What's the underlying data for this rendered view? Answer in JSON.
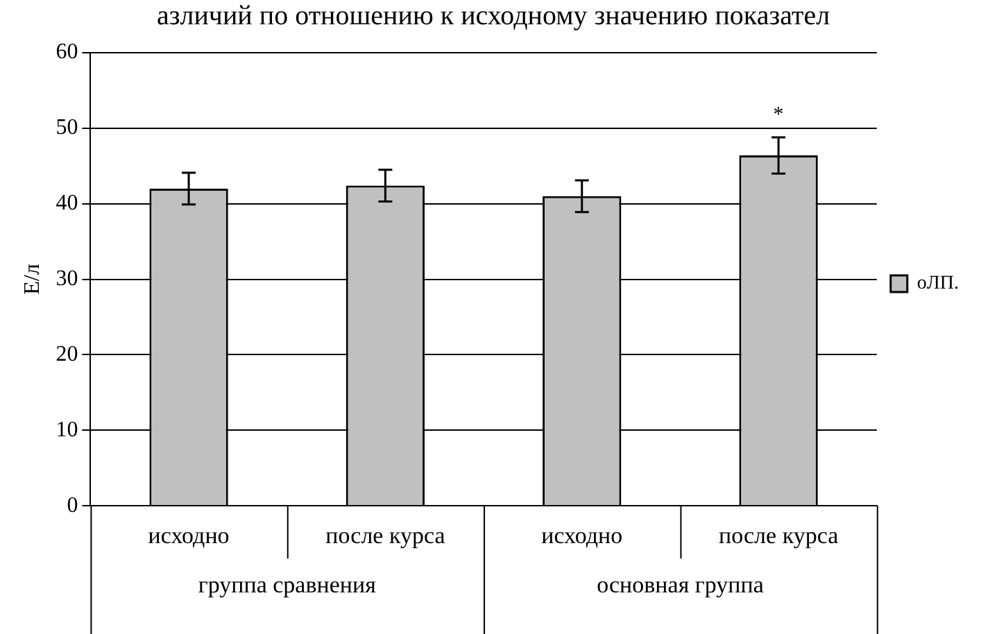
{
  "chart_data": {
    "type": "bar",
    "title": "азличий по отношению к исходному значению показател",
    "ylabel": "Е/л",
    "categories": [
      "исходно",
      "после курса",
      "исходно",
      "после курса"
    ],
    "series": [
      {
        "name": "оЛП.",
        "color": "#c0c0c0",
        "values": [
          42.0,
          42.4,
          41.0,
          46.4
        ],
        "errors": [
          2.1,
          2.1,
          2.1,
          2.4
        ],
        "value_labels": [
          null,
          null,
          null,
          "*"
        ]
      }
    ],
    "annotations": [
      "группа сравнения",
      "основная группа"
    ],
    "ylim": [
      0,
      60
    ],
    "yticks": [
      0,
      10,
      20,
      30,
      40,
      50,
      60
    ],
    "grid": "y",
    "legend": "right"
  }
}
